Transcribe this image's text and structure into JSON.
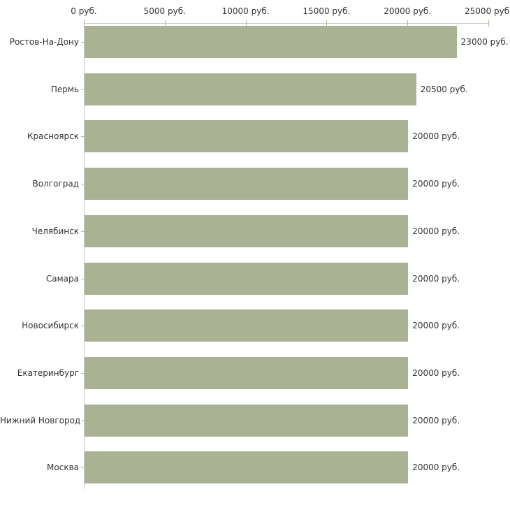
{
  "chart_data": {
    "type": "bar",
    "orientation": "horizontal",
    "title": "",
    "xlabel": "",
    "ylabel": "",
    "unit": "руб.",
    "xlim": [
      0,
      25000
    ],
    "grid": false,
    "legend": false,
    "categories": [
      "Ростов-На-Дону",
      "Пермь",
      "Красноярск",
      "Волгоград",
      "Челябинск",
      "Самара",
      "Новосибирск",
      "Екатеринбург",
      "Нижний Новгород",
      "Москва"
    ],
    "values": [
      23000,
      20500,
      20000,
      20000,
      20000,
      20000,
      20000,
      20000,
      20000,
      20000
    ],
    "value_labels": [
      "23000 руб.",
      "20500 руб.",
      "20000 руб.",
      "20000 руб.",
      "20000 руб.",
      "20000 руб.",
      "20000 руб.",
      "20000 руб.",
      "20000 руб.",
      "20000 руб."
    ],
    "x_ticks": [
      0,
      5000,
      10000,
      15000,
      20000,
      25000
    ],
    "x_tick_labels": [
      "0 руб.",
      "5000 руб.",
      "10000 руб.",
      "15000 руб.",
      "20000 руб.",
      "25000 руб."
    ],
    "colors": {
      "bar": "#aab294",
      "axis_line": "#cccccc",
      "tick": "#b9b88f",
      "text": "#333333",
      "background": "#ffffff"
    }
  }
}
